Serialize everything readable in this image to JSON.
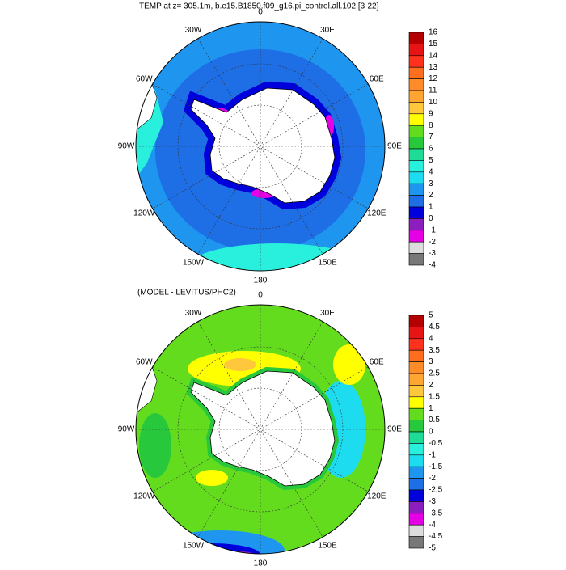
{
  "panels": [
    {
      "title": "TEMP at z= 305.1m, b.e15.B1850.f09_g16.pi_control.all.102 [3-22]",
      "longitude_labels": [
        "0",
        "30E",
        "60E",
        "90E",
        "120E",
        "150E",
        "180",
        "150W",
        "120W",
        "90W",
        "60W",
        "30W"
      ],
      "colorbar": {
        "labels": [
          "16",
          "15",
          "14",
          "13",
          "12",
          "11",
          "10",
          "9",
          "8",
          "7",
          "6",
          "5",
          "4",
          "3",
          "2",
          "1",
          "0",
          "-1",
          "-2",
          "-3",
          "-4"
        ],
        "colors": [
          "#b40000",
          "#e61414",
          "#ff321e",
          "#ff6e1e",
          "#ff8c28",
          "#ffa532",
          "#ffc83c",
          "#ffff00",
          "#64dc1e",
          "#28c83c",
          "#1edc96",
          "#28f0dc",
          "#1edcf0",
          "#1e96f0",
          "#1e6ee6",
          "#0000dc",
          "#8c1ebe",
          "#e600e6",
          "#dcdcdc",
          "#787878"
        ]
      }
    },
    {
      "title": "(MODEL - LEVITUS/PHC2)",
      "longitude_labels": [
        "0",
        "30E",
        "60E",
        "90E",
        "120E",
        "150E",
        "180",
        "150W",
        "120W",
        "90W",
        "60W",
        "30W"
      ],
      "colorbar": {
        "labels": [
          "5",
          "4.5",
          "4",
          "3.5",
          "3",
          "2.5",
          "2",
          "1.5",
          "1",
          "0.5",
          "0",
          "-0.5",
          "-1",
          "-1.5",
          "-2",
          "-2.5",
          "-3",
          "-3.5",
          "-4",
          "-4.5",
          "-5"
        ],
        "colors": [
          "#b40000",
          "#e61414",
          "#ff321e",
          "#ff6e1e",
          "#ff8c28",
          "#ffa532",
          "#ffc83c",
          "#ffff00",
          "#64dc1e",
          "#28c83c",
          "#1edc96",
          "#28f0dc",
          "#1edcf0",
          "#1e96f0",
          "#1e6ee6",
          "#0000dc",
          "#8c1ebe",
          "#e600e6",
          "#dcdcdc",
          "#787878"
        ]
      }
    }
  ]
}
